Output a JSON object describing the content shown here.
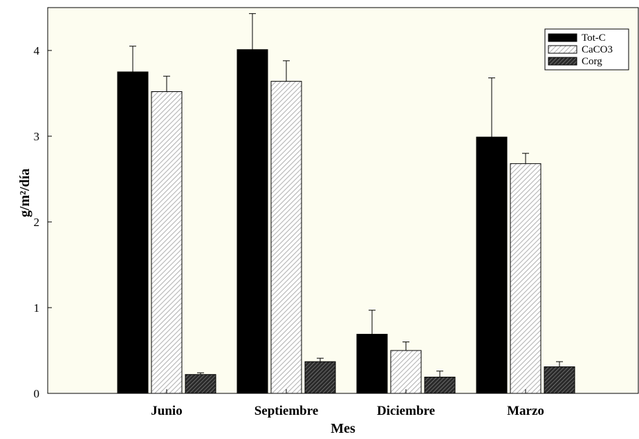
{
  "chart_data": {
    "type": "bar",
    "title": "",
    "xlabel": "Mes",
    "ylabel": "g/m²/día",
    "ylim": [
      0,
      4.5
    ],
    "yticks": [
      0,
      1,
      2,
      3,
      4
    ],
    "categories": [
      "Junio",
      "Septiembre",
      "Diciembre",
      "Marzo"
    ],
    "series": [
      {
        "name": "Tot-C",
        "values": [
          3.75,
          4.01,
          0.69,
          2.99
        ],
        "errors": [
          0.3,
          0.42,
          0.28,
          0.69
        ],
        "pattern": "solid"
      },
      {
        "name": "CaCO3",
        "values": [
          3.52,
          3.64,
          0.5,
          2.68
        ],
        "errors": [
          0.18,
          0.24,
          0.1,
          0.12
        ],
        "pattern": "light-hatch"
      },
      {
        "name": "Corg",
        "values": [
          0.22,
          0.37,
          0.19,
          0.31
        ],
        "errors": [
          0.02,
          0.04,
          0.07,
          0.06
        ],
        "pattern": "dark-hatch"
      }
    ],
    "legend_position": "top-right",
    "plot_background": "#fdfdf0",
    "grid": false
  }
}
